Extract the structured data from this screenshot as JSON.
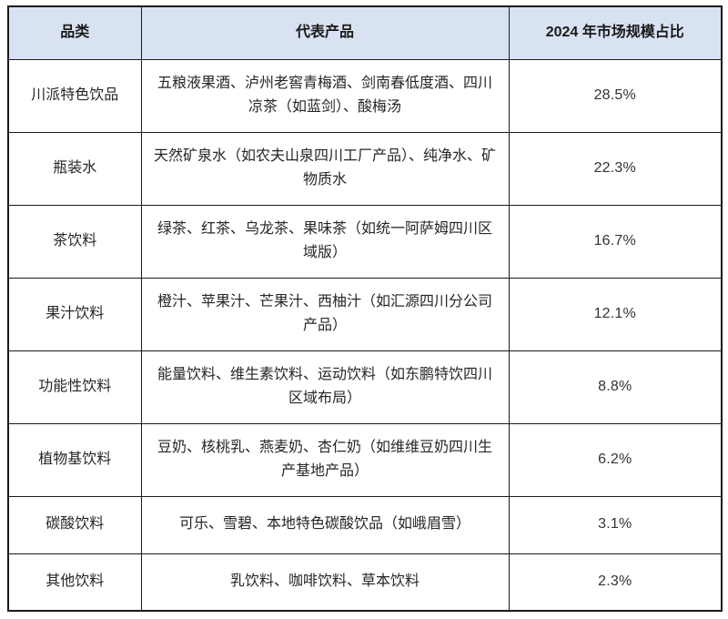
{
  "table": {
    "name": "sichuan-beverage-market-share-table",
    "headers": {
      "category": "品类",
      "products": "代表产品",
      "share": "2024 年市场规模占比"
    },
    "rows": [
      {
        "category": "川派特色饮品",
        "products": "五粮液果酒、泸州老窖青梅酒、剑南春低度酒、四川凉茶（如蓝剑）、酸梅汤",
        "share": "28.5%"
      },
      {
        "category": "瓶装水",
        "products": "天然矿泉水（如农夫山泉四川工厂产品）、纯净水、矿物质水",
        "share": "22.3%"
      },
      {
        "category": "茶饮料",
        "products": "绿茶、红茶、乌龙茶、果味茶（如统一阿萨姆四川区域版）",
        "share": "16.7%"
      },
      {
        "category": "果汁饮料",
        "products": "橙汁、苹果汁、芒果汁、西柚汁（如汇源四川分公司产品）",
        "share": "12.1%"
      },
      {
        "category": "功能性饮料",
        "products": "能量饮料、维生素饮料、运动饮料（如东鹏特饮四川区域布局）",
        "share": "8.8%"
      },
      {
        "category": "植物基饮料",
        "products": "豆奶、核桃乳、燕麦奶、杏仁奶（如维维豆奶四川生产基地产品）",
        "share": "6.2%"
      },
      {
        "category": "碳酸饮料",
        "products": "可乐、雪碧、本地特色碳酸饮品（如峨眉雪）",
        "share": "3.1%"
      },
      {
        "category": "其他饮料",
        "products": "乳饮料、咖啡饮料、草本饮料",
        "share": "2.3%"
      }
    ],
    "colors": {
      "header_bg": "#d9e2f3",
      "border": "#1a1a1a",
      "text": "#262626"
    }
  }
}
